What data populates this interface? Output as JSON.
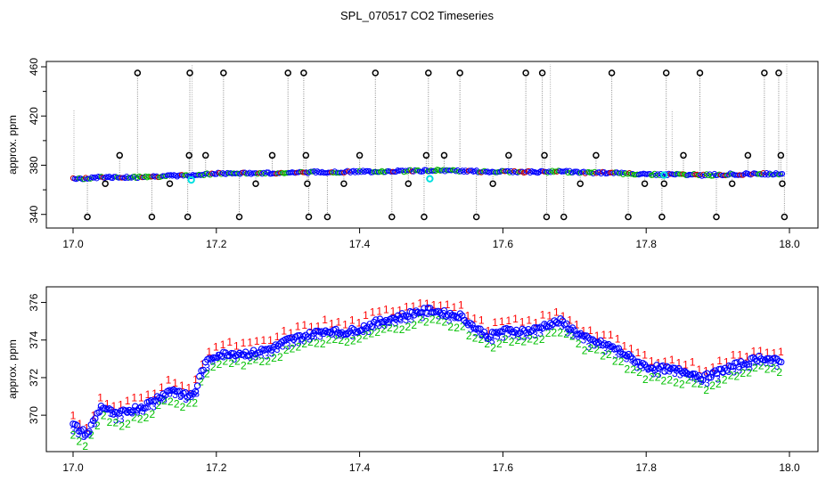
{
  "chart_data": [
    {
      "type": "scatter",
      "title": "SPL_070517  CO2 Timeseries",
      "ylabel": "approx. ppm",
      "xlim": [
        17.0,
        18.0
      ],
      "ylim": [
        334,
        460
      ],
      "x_ticks": [
        17.0,
        17.2,
        17.4,
        17.6,
        17.8,
        18.0
      ],
      "x_tick_labels": [
        "17.0",
        "17.2",
        "17.4",
        "17.6",
        "17.8",
        "18.0"
      ],
      "y_ticks": [
        340,
        380,
        420,
        460
      ],
      "y_tick_labels": [
        "340",
        "380",
        "420",
        "460"
      ],
      "main_series": [
        [
          17.0,
          369.5
        ],
        [
          17.02,
          369.0
        ],
        [
          17.04,
          370.5
        ],
        [
          17.06,
          370.0
        ],
        [
          17.08,
          370.3
        ],
        [
          17.1,
          370.5
        ],
        [
          17.12,
          371.0
        ],
        [
          17.15,
          371.5
        ],
        [
          17.17,
          372.0
        ],
        [
          17.18,
          372.5
        ],
        [
          17.2,
          373.2
        ],
        [
          17.25,
          373.5
        ],
        [
          17.3,
          374.0
        ],
        [
          17.35,
          374.5
        ],
        [
          17.4,
          374.7
        ],
        [
          17.45,
          375.2
        ],
        [
          17.5,
          375.7
        ],
        [
          17.55,
          375.2
        ],
        [
          17.6,
          374.6
        ],
        [
          17.65,
          374.6
        ],
        [
          17.68,
          375.0
        ],
        [
          17.72,
          374.0
        ],
        [
          17.76,
          373.5
        ],
        [
          17.8,
          372.6
        ],
        [
          17.85,
          372.3
        ],
        [
          17.88,
          372.0
        ],
        [
          17.92,
          372.6
        ],
        [
          17.96,
          373.1
        ],
        [
          17.99,
          372.8
        ]
      ],
      "outliers": [
        [
          17.02,
          338
        ],
        [
          17.045,
          365
        ],
        [
          17.065,
          388
        ],
        [
          17.09,
          455
        ],
        [
          17.11,
          338
        ],
        [
          17.135,
          365
        ],
        [
          17.16,
          338
        ],
        [
          17.162,
          388
        ],
        [
          17.163,
          455
        ],
        [
          17.185,
          388
        ],
        [
          17.21,
          455
        ],
        [
          17.232,
          338
        ],
        [
          17.255,
          365
        ],
        [
          17.278,
          388
        ],
        [
          17.3,
          455
        ],
        [
          17.322,
          455
        ],
        [
          17.325,
          388
        ],
        [
          17.327,
          365
        ],
        [
          17.329,
          338
        ],
        [
          17.355,
          338
        ],
        [
          17.378,
          365
        ],
        [
          17.4,
          388
        ],
        [
          17.422,
          455
        ],
        [
          17.445,
          338
        ],
        [
          17.468,
          365
        ],
        [
          17.49,
          338
        ],
        [
          17.493,
          388
        ],
        [
          17.496,
          455
        ],
        [
          17.518,
          388
        ],
        [
          17.54,
          455
        ],
        [
          17.563,
          338
        ],
        [
          17.586,
          365
        ],
        [
          17.608,
          388
        ],
        [
          17.632,
          455
        ],
        [
          17.655,
          455
        ],
        [
          17.658,
          388
        ],
        [
          17.661,
          338
        ],
        [
          17.685,
          338
        ],
        [
          17.708,
          365
        ],
        [
          17.73,
          388
        ],
        [
          17.752,
          455
        ],
        [
          17.775,
          338
        ],
        [
          17.798,
          365
        ],
        [
          17.822,
          338
        ],
        [
          17.825,
          365
        ],
        [
          17.828,
          455
        ],
        [
          17.852,
          388
        ],
        [
          17.875,
          455
        ],
        [
          17.898,
          338
        ],
        [
          17.92,
          365
        ],
        [
          17.942,
          388
        ],
        [
          17.965,
          455
        ],
        [
          17.985,
          455
        ],
        [
          17.988,
          388
        ],
        [
          17.99,
          365
        ],
        [
          17.993,
          338
        ]
      ],
      "highlight_points": [
        [
          17.165,
          368
        ],
        [
          17.498,
          369
        ],
        [
          17.825,
          372
        ]
      ]
    },
    {
      "type": "scatter",
      "ylabel": "approx. ppm",
      "xlim": [
        17.0,
        18.0
      ],
      "ylim": [
        368.3,
        376.5
      ],
      "x_ticks": [
        17.0,
        17.2,
        17.4,
        17.6,
        17.8,
        18.0
      ],
      "x_tick_labels": [
        "17.0",
        "17.2",
        "17.4",
        "17.6",
        "17.8",
        "18.0"
      ],
      "y_ticks": [
        370,
        372,
        374,
        376
      ],
      "y_tick_labels": [
        "370",
        "372",
        "374",
        "376"
      ],
      "series": [
        {
          "name": "3",
          "symbol": "3",
          "color": "#0000ff",
          "offset": -0.2
        },
        {
          "name": "2",
          "symbol": "2",
          "color": "#00c000",
          "offset": -0.55
        },
        {
          "name": "1",
          "symbol": "1",
          "color": "#ff0000",
          "offset": 0.45
        }
      ],
      "points": [
        [
          17.0,
          369.5
        ],
        [
          17.01,
          369.2
        ],
        [
          17.02,
          369.0
        ],
        [
          17.03,
          369.8
        ],
        [
          17.04,
          370.5
        ],
        [
          17.06,
          370.0
        ],
        [
          17.08,
          370.3
        ],
        [
          17.1,
          370.5
        ],
        [
          17.12,
          371.0
        ],
        [
          17.14,
          371.4
        ],
        [
          17.16,
          371.0
        ],
        [
          17.17,
          371.2
        ],
        [
          17.18,
          372.4
        ],
        [
          17.19,
          373.0
        ],
        [
          17.2,
          373.2
        ],
        [
          17.22,
          373.3
        ],
        [
          17.25,
          373.3
        ],
        [
          17.28,
          373.6
        ],
        [
          17.3,
          374.0
        ],
        [
          17.32,
          374.2
        ],
        [
          17.35,
          374.5
        ],
        [
          17.38,
          374.4
        ],
        [
          17.4,
          374.6
        ],
        [
          17.42,
          374.9
        ],
        [
          17.45,
          375.2
        ],
        [
          17.48,
          375.5
        ],
        [
          17.5,
          375.6
        ],
        [
          17.52,
          375.4
        ],
        [
          17.54,
          375.3
        ],
        [
          17.56,
          374.7
        ],
        [
          17.58,
          374.2
        ],
        [
          17.6,
          374.5
        ],
        [
          17.62,
          374.5
        ],
        [
          17.64,
          374.5
        ],
        [
          17.66,
          374.8
        ],
        [
          17.68,
          375.0
        ],
        [
          17.7,
          374.5
        ],
        [
          17.72,
          374.0
        ],
        [
          17.74,
          373.8
        ],
        [
          17.76,
          373.5
        ],
        [
          17.78,
          373.0
        ],
        [
          17.8,
          372.6
        ],
        [
          17.82,
          372.5
        ],
        [
          17.84,
          372.4
        ],
        [
          17.86,
          372.3
        ],
        [
          17.88,
          372.0
        ],
        [
          17.9,
          372.3
        ],
        [
          17.92,
          372.6
        ],
        [
          17.94,
          372.8
        ],
        [
          17.96,
          373.1
        ],
        [
          17.98,
          372.9
        ],
        [
          17.99,
          372.8
        ]
      ]
    }
  ]
}
